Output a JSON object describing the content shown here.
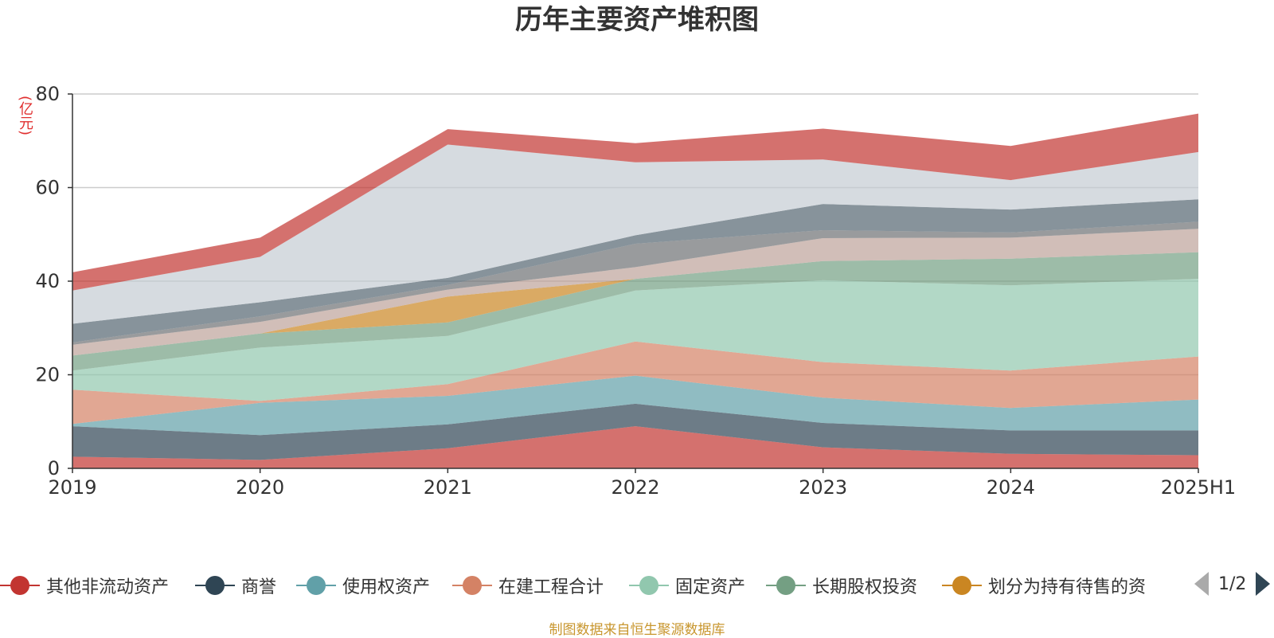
{
  "chart_data": {
    "type": "area",
    "stacked": true,
    "title": "历年主要资产堆积图",
    "unit_label": "(亿元)",
    "categories": [
      "2019",
      "2020",
      "2021",
      "2022",
      "2023",
      "2024",
      "2025H1"
    ],
    "ylim": [
      0,
      80
    ],
    "yticks": [
      0,
      20,
      40,
      60,
      80
    ],
    "grid": true,
    "legend_position": "bottom",
    "legend_page": "1/2",
    "source": "制图数据来自恒生聚源数据库",
    "series": [
      {
        "name": "其他非流动资产",
        "color": "#c23531",
        "legend": true,
        "values": [
          2.5,
          1.8,
          4.3,
          9.0,
          4.5,
          3.1,
          2.8
        ]
      },
      {
        "name": "商誉",
        "color": "#2f4554",
        "legend": true,
        "values": [
          6.5,
          5.3,
          5.1,
          4.8,
          5.2,
          5.0,
          5.3
        ]
      },
      {
        "name": "使用权资产",
        "color": "#61a0a8",
        "legend": true,
        "values": [
          0.5,
          6.9,
          6.1,
          6.0,
          5.4,
          4.8,
          6.6
        ]
      },
      {
        "name": "在建工程合计",
        "color": "#d48265",
        "legend": true,
        "values": [
          7.3,
          0.4,
          2.5,
          7.3,
          7.6,
          8.0,
          9.2
        ]
      },
      {
        "name": "固定资产",
        "color": "#91c7ae",
        "legend": true,
        "values": [
          4.1,
          11.4,
          10.3,
          10.9,
          17.5,
          18.2,
          16.6
        ]
      },
      {
        "name": "长期股权投资",
        "color": "#749f83",
        "legend": true,
        "values": [
          3.2,
          3.0,
          2.9,
          2.5,
          4.1,
          5.7,
          5.7
        ]
      },
      {
        "name": "划分为持有待售的资",
        "color": "#ca8622",
        "legend": true,
        "values": [
          0.0,
          0.0,
          5.5,
          0.0,
          0.0,
          0.0,
          0.0
        ]
      },
      {
        "name": "",
        "color": "#bda29a",
        "legend": false,
        "values": [
          2.3,
          2.5,
          1.5,
          2.5,
          4.9,
          4.5,
          5.0
        ]
      },
      {
        "name": "",
        "color": "#6e7074",
        "legend": false,
        "values": [
          0.5,
          1.2,
          1.0,
          5.0,
          1.7,
          1.1,
          1.5
        ]
      },
      {
        "name": "",
        "color": "#546570",
        "legend": false,
        "values": [
          4.0,
          3.0,
          1.5,
          1.8,
          5.6,
          4.9,
          4.8
        ]
      },
      {
        "name": "",
        "color": "#c4ccd3",
        "legend": false,
        "values": [
          7.1,
          9.7,
          28.5,
          15.6,
          9.5,
          6.3,
          10.1
        ]
      },
      {
        "name": "",
        "color": "#c23531",
        "legend": false,
        "values": [
          3.9,
          4.1,
          3.3,
          4.1,
          6.6,
          7.3,
          8.2
        ]
      }
    ]
  }
}
